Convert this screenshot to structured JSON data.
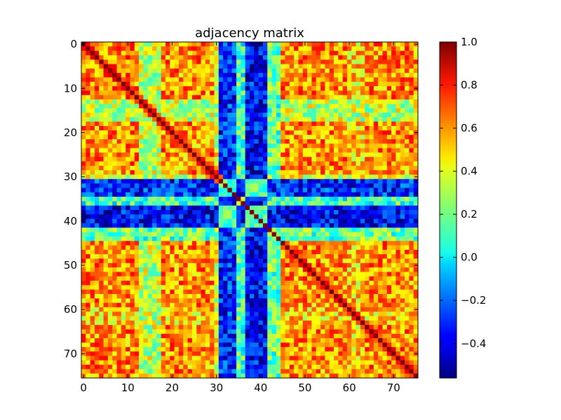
{
  "chart_data": {
    "type": "heatmap",
    "title": "adjacency matrix",
    "xlabel": "",
    "ylabel": "",
    "size": 76,
    "diagonal_value": 1.0,
    "x_ticks": [
      0,
      10,
      20,
      30,
      40,
      50,
      60,
      70
    ],
    "x_tick_labels": [
      "0",
      "10",
      "20",
      "30",
      "40",
      "50",
      "60",
      "70"
    ],
    "y_ticks": [
      0,
      10,
      20,
      30,
      40,
      50,
      60,
      70
    ],
    "y_tick_labels": [
      "0",
      "10",
      "20",
      "30",
      "40",
      "50",
      "60",
      "70"
    ],
    "colormap": "jet",
    "colorbar": {
      "vmin": -0.56,
      "vmax": 1.0,
      "ticks": [
        1.0,
        0.8,
        0.6,
        0.4,
        0.2,
        0.0,
        -0.2,
        -0.4
      ],
      "tick_labels": [
        "1.0",
        "0.8",
        "0.6",
        "0.4",
        "0.2",
        "0.0",
        "−0.2",
        "−0.4"
      ]
    },
    "groups": [
      {
        "range": [
          0,
          12
        ],
        "level": 0.62
      },
      {
        "range": [
          13,
          17
        ],
        "level": 0.32
      },
      {
        "range": [
          18,
          29
        ],
        "level": 0.58
      },
      {
        "range": [
          30,
          30
        ],
        "level": 0.38
      },
      {
        "range": [
          31,
          34
        ],
        "level": -0.32
      },
      {
        "range": [
          35,
          36
        ],
        "level": 0.12
      },
      {
        "range": [
          37,
          41
        ],
        "level": -0.38
      },
      {
        "range": [
          42,
          44
        ],
        "level": 0.18
      },
      {
        "range": [
          45,
          59
        ],
        "level": 0.58
      },
      {
        "range": [
          60,
          63
        ],
        "level": 0.48
      },
      {
        "range": [
          64,
          75
        ],
        "level": 0.58
      }
    ],
    "grid": false
  },
  "colors": {
    "frame": "#000000",
    "background": "#ffffff"
  }
}
